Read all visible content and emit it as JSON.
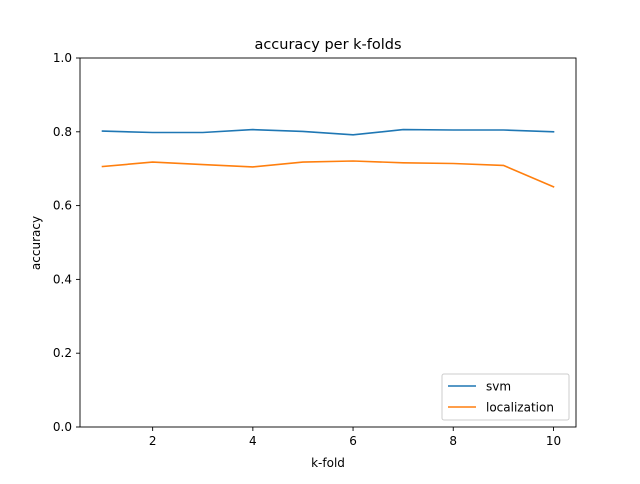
{
  "chart_data": {
    "type": "line",
    "title": "accuracy per k-folds",
    "xlabel": "k-fold",
    "ylabel": "accuracy",
    "xlim": [
      0.55,
      10.45
    ],
    "ylim": [
      0.0,
      1.0
    ],
    "xticks": [
      2,
      4,
      6,
      8,
      10
    ],
    "yticks": [
      0.0,
      0.2,
      0.4,
      0.6,
      0.8,
      1.0
    ],
    "ytick_labels": [
      "0.0",
      "0.2",
      "0.4",
      "0.6",
      "0.8",
      "1.0"
    ],
    "grid": false,
    "legend_position": "lower-right",
    "x": [
      1,
      2,
      3,
      4,
      5,
      6,
      7,
      8,
      9,
      10
    ],
    "series": [
      {
        "name": "svm",
        "color": "#1f77b4",
        "values": [
          0.802,
          0.798,
          0.798,
          0.806,
          0.801,
          0.792,
          0.806,
          0.805,
          0.805,
          0.8
        ]
      },
      {
        "name": "localization",
        "color": "#ff7f0e",
        "values": [
          0.706,
          0.718,
          0.711,
          0.705,
          0.718,
          0.721,
          0.716,
          0.714,
          0.709,
          0.651
        ]
      }
    ]
  }
}
